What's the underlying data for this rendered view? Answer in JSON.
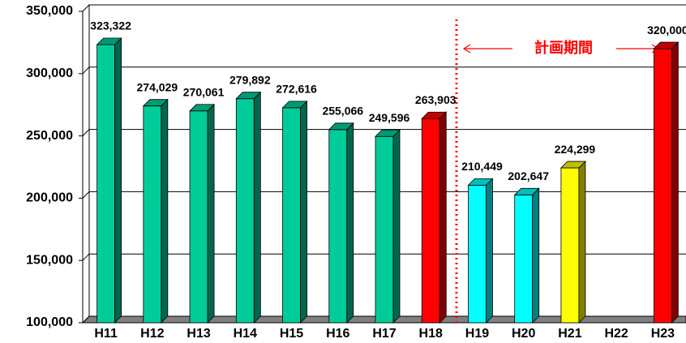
{
  "chart_data": {
    "type": "bar",
    "categories": [
      "H11",
      "H12",
      "H13",
      "H14",
      "H15",
      "H16",
      "H17",
      "H18",
      "H19",
      "H20",
      "H21",
      "H22",
      "H23"
    ],
    "values": [
      323322,
      274029,
      270061,
      279892,
      272616,
      255066,
      249596,
      263903,
      210449,
      202647,
      224299,
      null,
      320000
    ],
    "value_labels": [
      "323,322",
      "274,029",
      "270,061",
      "279,892",
      "272,616",
      "255,066",
      "249,596",
      "263,903",
      "210,449",
      "202,647",
      "224,299",
      null,
      "320,000"
    ],
    "colors": [
      "#00cc99",
      "#00cc99",
      "#00cc99",
      "#00cc99",
      "#00cc99",
      "#00cc99",
      "#00cc99",
      "#ff0000",
      "#00ffff",
      "#00ffff",
      "#ffff00",
      null,
      "#ff0000"
    ],
    "ylim": [
      100000,
      350000
    ],
    "yticks": [
      {
        "value": 100000,
        "label": "100,000"
      },
      {
        "value": 150000,
        "label": "150,000"
      },
      {
        "value": 200000,
        "label": "200,000"
      },
      {
        "value": 250000,
        "label": "250,000"
      },
      {
        "value": 300000,
        "label": "300,000"
      },
      {
        "value": 350000,
        "label": "350,000"
      }
    ],
    "annotation": "計画期間"
  }
}
